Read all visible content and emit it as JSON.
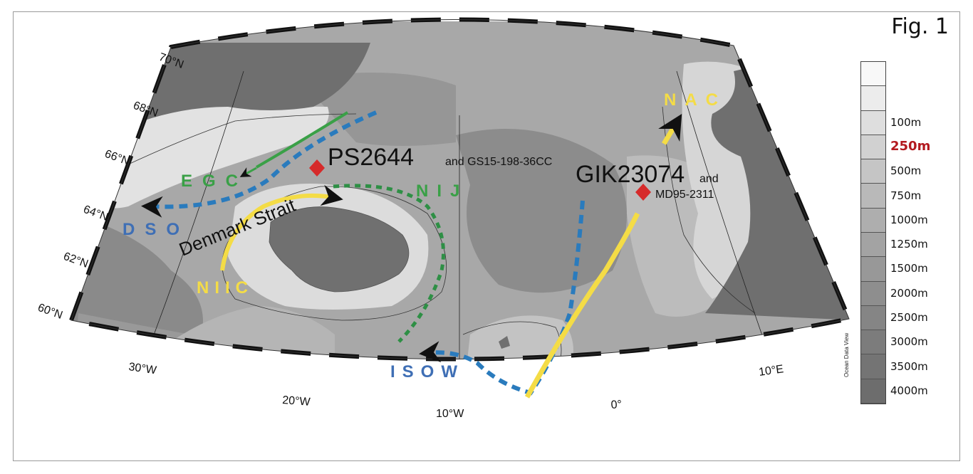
{
  "figure": {
    "label": "Fig. 1"
  },
  "lat_labels": [
    "70°N",
    "68°N",
    "66°N",
    "64°N",
    "62°N",
    "60°N"
  ],
  "lon_labels": [
    "30°W",
    "20°W",
    "10°W",
    "0°",
    "10°E"
  ],
  "stations": [
    {
      "name": "PS2644",
      "extra": "and GS15-198-36CC",
      "color": "#d62a2a"
    },
    {
      "name": "GIK23074",
      "extra": "and",
      "extra2": "MD95-2311",
      "color": "#d62a2a"
    }
  ],
  "places": {
    "strait": "Denmark Strait"
  },
  "currents": [
    {
      "label": "EGC",
      "color": "#3aa047"
    },
    {
      "label": "DSO",
      "color": "#3f6fb5"
    },
    {
      "label": "NIJ",
      "color": "#3aa047"
    },
    {
      "label": "NIIC",
      "color": "#f4dc46"
    },
    {
      "label": "ISOW",
      "color": "#3f6fb5"
    },
    {
      "label": "NAC",
      "color": "#f4dc46"
    }
  ],
  "colors": {
    "cold_deep": "#2a7bbd",
    "cold_surface": "#3aa047",
    "warm": "#f4dc46",
    "arrow": "#111111",
    "station_marker": "#d62a2a",
    "highlight": "#b3191f"
  },
  "legend": {
    "credit": "Ocean Data View",
    "levels": [
      "",
      "",
      "100m",
      "250m",
      "500m",
      "750m",
      "1000m",
      "1250m",
      "1500m",
      "2000m",
      "2500m",
      "3000m",
      "3500m",
      "4000m"
    ],
    "highlight": "250m",
    "shades": [
      "#f8f8f8",
      "#ececec",
      "#dedede",
      "#d1d1d1",
      "#c5c5c5",
      "#b9b9b9",
      "#aeaeae",
      "#a3a3a3",
      "#989898",
      "#8e8e8e",
      "#858585",
      "#7c7c7c",
      "#747474",
      "#6d6d6d"
    ]
  }
}
